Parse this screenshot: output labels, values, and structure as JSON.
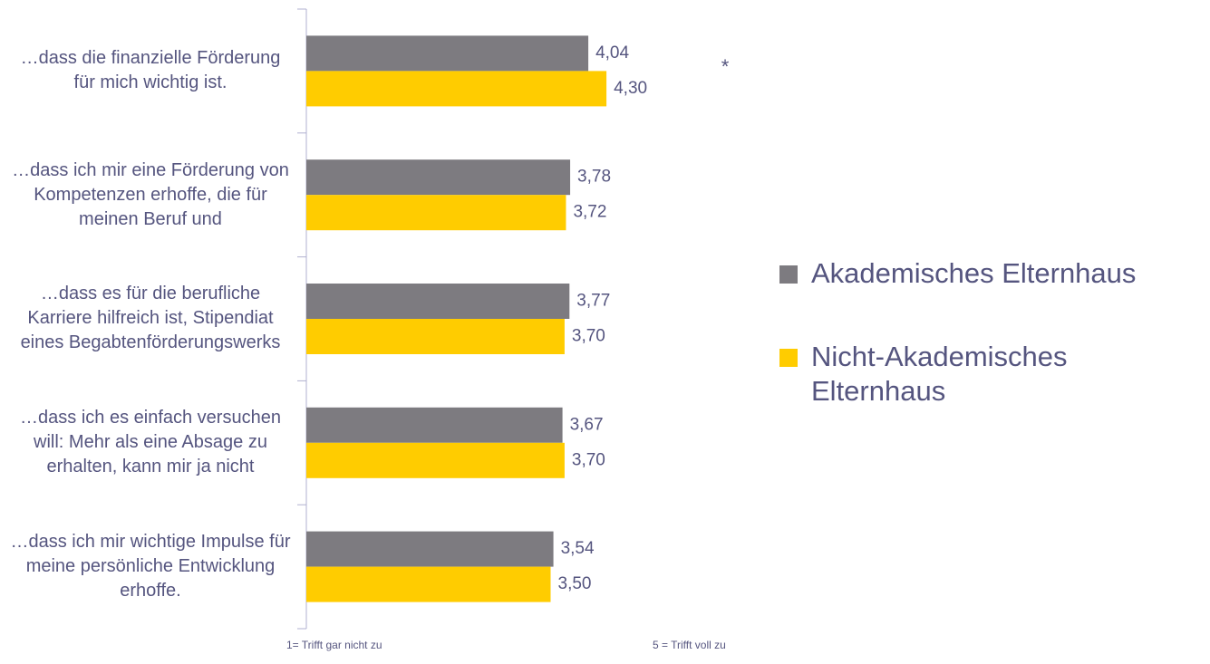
{
  "chart_data": {
    "type": "hbar",
    "categories": [
      "…dass die finanzielle Förderung für mich wichtig ist.",
      "…dass ich mir eine Förderung von Kompetenzen erhoffe, die für meinen Beruf und",
      "…dass es für die berufliche Karriere hilfreich ist, Stipendiat eines Begabtenförderungswerks",
      "…dass ich es einfach versuchen will: Mehr als eine Absage zu erhalten, kann mir ja nicht",
      "…dass ich mir wichtige Impulse für meine persönliche Entwicklung erhoffe."
    ],
    "series": [
      {
        "name": "Akademisches Elternhaus",
        "color": "#7d7b80",
        "values": [
          4.04,
          3.78,
          3.77,
          3.67,
          3.54
        ],
        "value_labels": [
          "4,04",
          "3,78",
          "3,77",
          "3,67",
          "3,54"
        ]
      },
      {
        "name": "Nicht-Akademisches Elternhaus",
        "color": "#ffcc00",
        "values": [
          4.3,
          3.72,
          3.7,
          3.7,
          3.5
        ],
        "value_labels": [
          "4,30",
          "3,72",
          "3,70",
          "3,70",
          "3,50"
        ]
      }
    ],
    "xlim": [
      0,
      5
    ],
    "annotations": [
      "*",
      "1= Trifft gar nicht zu",
      "5 = Trifft voll zu"
    ]
  }
}
